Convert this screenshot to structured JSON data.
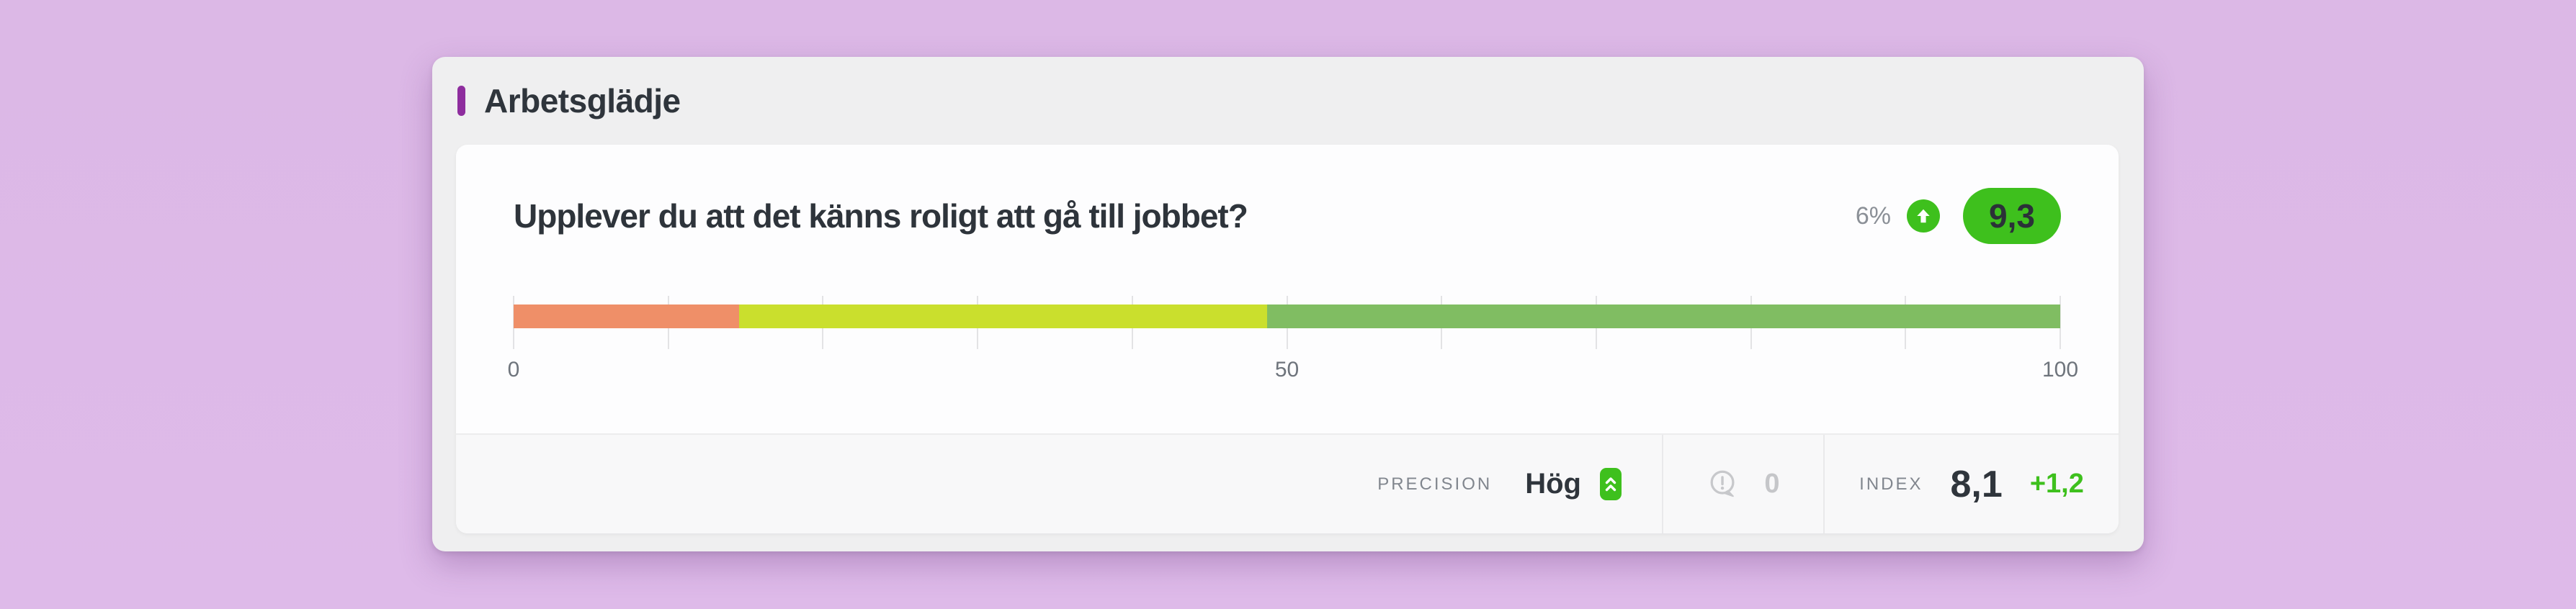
{
  "widget": {
    "title": "Arbetsglädje",
    "question": "Upplever du att det känns roligt att gå till jobbet?",
    "change_percent": "6%",
    "trend_direction": "up",
    "score": "9,3",
    "footer": {
      "precision_label": "PRECISION",
      "precision_value": "Hög",
      "comments_count": "0",
      "index_label": "INDEX",
      "index_value": "8,1",
      "index_change": "+1,2"
    }
  },
  "icons": {
    "trend": "arrow-up-circle-icon",
    "precision": "double-chevron-up-icon",
    "comments": "speech-bubble-exclamation-icon"
  },
  "colors": {
    "background_lavender": "#ddb9e7",
    "card_gray": "#efeff0",
    "card_white": "#fdfdfe",
    "accent_purple": "#8e2d9e",
    "text_dark": "#2f353c",
    "text_gray": "#81868e",
    "text_light_gray": "#c5c6c9",
    "positive_green": "#3ec01d",
    "bar_low": "#ef8f68",
    "bar_mid": "#cadf2d",
    "bar_high": "#80bd62"
  },
  "chart_data": {
    "type": "bar",
    "subtype": "stacked-horizontal-gauge",
    "title": "Upplever du att det känns roligt att gå till jobbet?",
    "xlabel": "",
    "ylabel": "",
    "x_min": 0,
    "x_max": 100,
    "grid": true,
    "gridline_step": 10,
    "tick_labels": [
      "0",
      "50",
      "100"
    ],
    "tick_label_positions": [
      0,
      50,
      100
    ],
    "segments": [
      {
        "name": "low",
        "start": 0,
        "end": 14.6,
        "value": 14.6,
        "color": "#ef8f68"
      },
      {
        "name": "mid",
        "start": 14.6,
        "end": 48.7,
        "value": 34.1,
        "color": "#cadf2d"
      },
      {
        "name": "high",
        "start": 48.7,
        "end": 100,
        "value": 51.3,
        "color": "#80bd62"
      }
    ],
    "score": "9,3",
    "score_scale_max": 10,
    "change_percent": "6%",
    "trend": "up"
  }
}
